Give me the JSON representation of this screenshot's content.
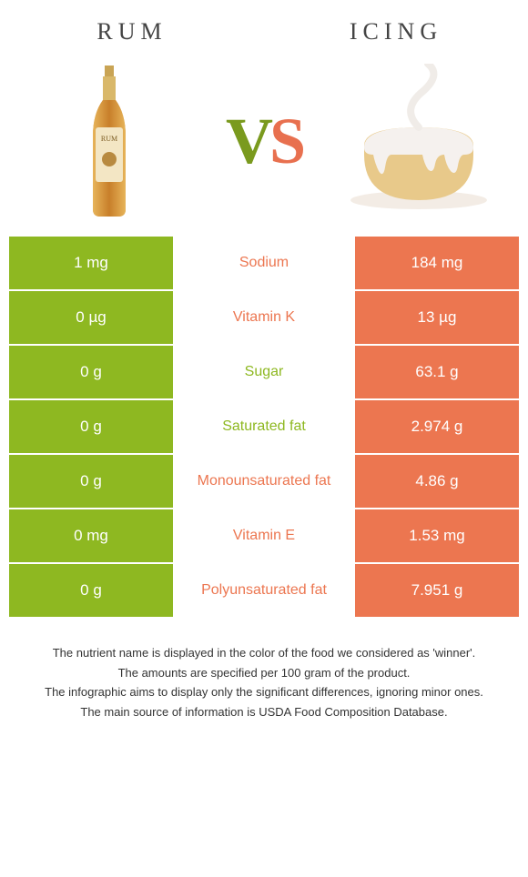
{
  "header": {
    "left_title": "RUM",
    "right_title": "ICING"
  },
  "vs": {
    "v": "V",
    "s": "S"
  },
  "colors": {
    "left_bg": "#8eb821",
    "right_bg": "#ec7650",
    "mid_bg": "#ffffff",
    "vs_left": "#7a9a1e",
    "vs_right": "#e8704f"
  },
  "rows": [
    {
      "left": "1 mg",
      "label": "Sodium",
      "right": "184 mg",
      "winner": "right"
    },
    {
      "left": "0 µg",
      "label": "Vitamin K",
      "right": "13 µg",
      "winner": "right"
    },
    {
      "left": "0 g",
      "label": "Sugar",
      "right": "63.1 g",
      "winner": "left"
    },
    {
      "left": "0 g",
      "label": "Saturated fat",
      "right": "2.974 g",
      "winner": "left"
    },
    {
      "left": "0 g",
      "label": "Monounsaturated fat",
      "right": "4.86 g",
      "winner": "right"
    },
    {
      "left": "0 mg",
      "label": "Vitamin E",
      "right": "1.53 mg",
      "winner": "right"
    },
    {
      "left": "0 g",
      "label": "Polyunsaturated fat",
      "right": "7.951 g",
      "winner": "right"
    }
  ],
  "footer": {
    "line1": "The nutrient name is displayed in the color of the food we considered as 'winner'.",
    "line2": "The amounts are specified per 100 gram of the product.",
    "line3": "The infographic aims to display only the significant differences, ignoring minor ones.",
    "line4": "The main source of information is USDA Food Composition Database."
  }
}
